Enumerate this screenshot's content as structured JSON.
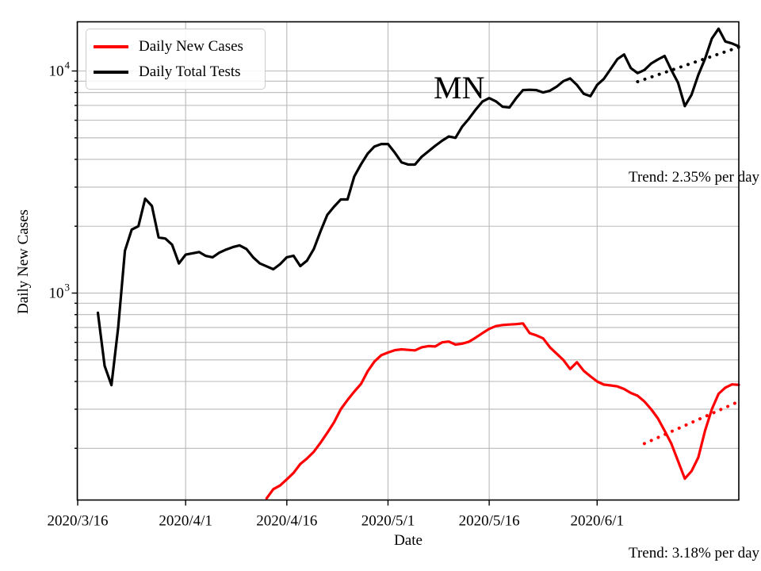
{
  "figure": {
    "region_label": "MN",
    "x_axis_label": "Date",
    "y_axis_label": "Daily New Cases",
    "legend": {
      "items": [
        {
          "label": "Daily New Cases",
          "color": "#ff0000"
        },
        {
          "label": "Daily Total Tests",
          "color": "#000000"
        }
      ]
    },
    "annotations": [
      {
        "id": "tests_trend",
        "text": "Trend: 2.35% per day"
      },
      {
        "id": "cases_trend",
        "text": "Trend: 3.18% per day"
      }
    ]
  },
  "chart_data": {
    "type": "line",
    "title": "",
    "annotation_text": "MN",
    "legend_position": "upper left",
    "grid": true,
    "style": {
      "background": "#ffffff",
      "grid_color": "#b9b9b9",
      "axes_color": "#000000",
      "cases_color": "#ff0000",
      "tests_color": "#000000"
    },
    "x_axis": {
      "label": "Date",
      "start_date": "2020/3/16",
      "end_date": "2020/6/22",
      "ticks": [
        "2020/3/16",
        "2020/4/1",
        "2020/4/16",
        "2020/5/1",
        "2020/5/16",
        "2020/6/1"
      ]
    },
    "y_axis": {
      "label": "Daily New Cases",
      "scale": "log",
      "range": [
        117,
        16650
      ],
      "major_ticks": [
        {
          "value": 1000,
          "mantissa": "10",
          "exponent": "3"
        },
        {
          "value": 10000,
          "mantissa": "10",
          "exponent": "4"
        }
      ],
      "grid_values": [
        200,
        300,
        400,
        500,
        600,
        700,
        800,
        900,
        1000,
        2000,
        3000,
        4000,
        5000,
        6000,
        7000,
        8000,
        9000,
        10000
      ]
    },
    "series": [
      {
        "name": "Daily New Cases",
        "color": "#ff0000",
        "cadence": "daily",
        "start_date": "2020/4/13",
        "values": [
          119,
          131,
          136,
          145,
          155,
          170,
          180,
          193,
          212,
          235,
          262,
          300,
          330,
          360,
          390,
          445,
          492,
          525,
          540,
          553,
          558,
          555,
          552,
          570,
          577,
          575,
          600,
          605,
          586,
          592,
          604,
          630,
          660,
          690,
          710,
          718,
          722,
          725,
          730,
          660,
          645,
          625,
          570,
          534,
          500,
          455,
          488,
          447,
          422,
          400,
          387,
          384,
          380,
          370,
          355,
          345,
          325,
          300,
          273,
          240,
          210,
          175,
          146,
          158,
          182,
          240,
          300,
          352,
          375,
          388,
          386
        ]
      },
      {
        "name": "Daily Total Tests",
        "color": "#000000",
        "cadence": "daily",
        "start_date": "2020/3/19",
        "values": [
          815,
          470,
          385,
          700,
          1550,
          1930,
          2000,
          2660,
          2470,
          1780,
          1760,
          1650,
          1360,
          1490,
          1510,
          1530,
          1470,
          1450,
          1520,
          1570,
          1610,
          1640,
          1580,
          1450,
          1360,
          1320,
          1280,
          1350,
          1450,
          1472,
          1323,
          1400,
          1580,
          1900,
          2250,
          2450,
          2640,
          2640,
          3350,
          3800,
          4250,
          4570,
          4690,
          4690,
          4290,
          3880,
          3790,
          3790,
          4110,
          4350,
          4600,
          4850,
          5070,
          5000,
          5620,
          6100,
          6700,
          7280,
          7550,
          7300,
          6900,
          6850,
          7550,
          8200,
          8230,
          8200,
          8000,
          8150,
          8500,
          9000,
          9260,
          8650,
          7900,
          7700,
          8650,
          9220,
          10200,
          11300,
          11870,
          10300,
          9780,
          10100,
          10800,
          11270,
          11680,
          10100,
          8850,
          6950,
          7820,
          9600,
          11350,
          14000,
          15500,
          13580,
          13300,
          12900
        ]
      }
    ],
    "trend_lines": [
      {
        "name": "Daily Total Tests trend",
        "color": "#000000",
        "style": "dotted",
        "start_date": "2020/6/7",
        "start_value": 8950,
        "end_date": "2020/6/22",
        "end_value": 12800,
        "rate_label": "Trend: 2.35% per day"
      },
      {
        "name": "Daily New Cases trend",
        "color": "#ff0000",
        "style": "dotted",
        "start_date": "2020/6/8",
        "start_value": 210,
        "end_date": "2020/6/22",
        "end_value": 325,
        "rate_label": "Trend: 3.18% per day"
      }
    ]
  }
}
